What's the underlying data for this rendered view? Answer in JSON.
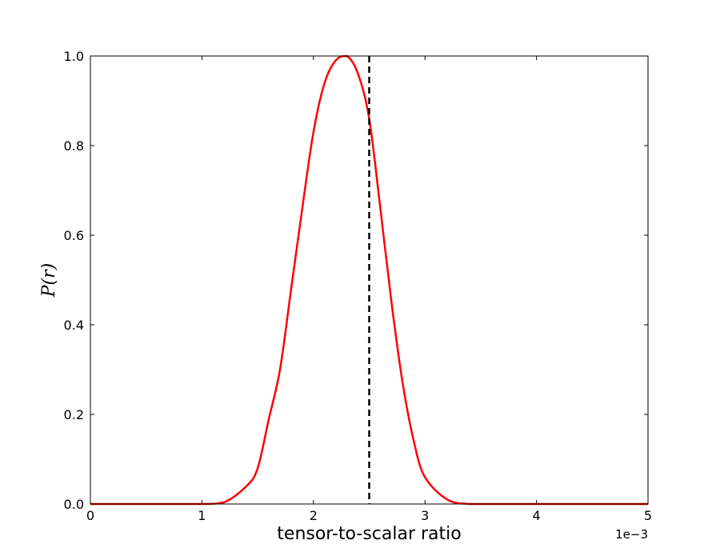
{
  "chart_data": {
    "type": "line",
    "title": "",
    "xlabel": "tensor-to-scalar ratio",
    "ylabel": "P(r)",
    "x_offset_label": "1e−3",
    "xlim": [
      0,
      5
    ],
    "ylim": [
      0,
      1
    ],
    "xticks": [
      0,
      1,
      2,
      3,
      4,
      5
    ],
    "xtick_labels": [
      "0",
      "1",
      "2",
      "3",
      "4",
      "5"
    ],
    "yticks": [
      0,
      0.2,
      0.4,
      0.6,
      0.8,
      1.0
    ],
    "ytick_labels": [
      "0.0",
      "0.2",
      "0.4",
      "0.6",
      "0.8",
      "1.0"
    ],
    "grid": false,
    "series": [
      {
        "kind": "gaussian-line",
        "color": "#ff0000",
        "x": [
          0.0,
          0.5,
          1.0,
          1.2,
          1.4,
          1.5,
          1.6,
          1.7,
          1.8,
          1.9,
          2.0,
          2.1,
          2.2,
          2.3,
          2.4,
          2.5,
          2.6,
          2.7,
          2.8,
          2.9,
          3.0,
          3.2,
          3.4,
          3.6,
          4.0,
          5.0
        ],
        "y": [
          0.0,
          0.0,
          0.0,
          0.004,
          0.04,
          0.08,
          0.19,
          0.3,
          0.48,
          0.66,
          0.83,
          0.94,
          0.99,
          1.0,
          0.96,
          0.86,
          0.66,
          0.45,
          0.27,
          0.14,
          0.06,
          0.01,
          0.0,
          0.0,
          0.0,
          0.0
        ]
      },
      {
        "kind": "vertical-line",
        "color": "#000000",
        "style": "dashed",
        "x_value": 2.5
      }
    ]
  }
}
